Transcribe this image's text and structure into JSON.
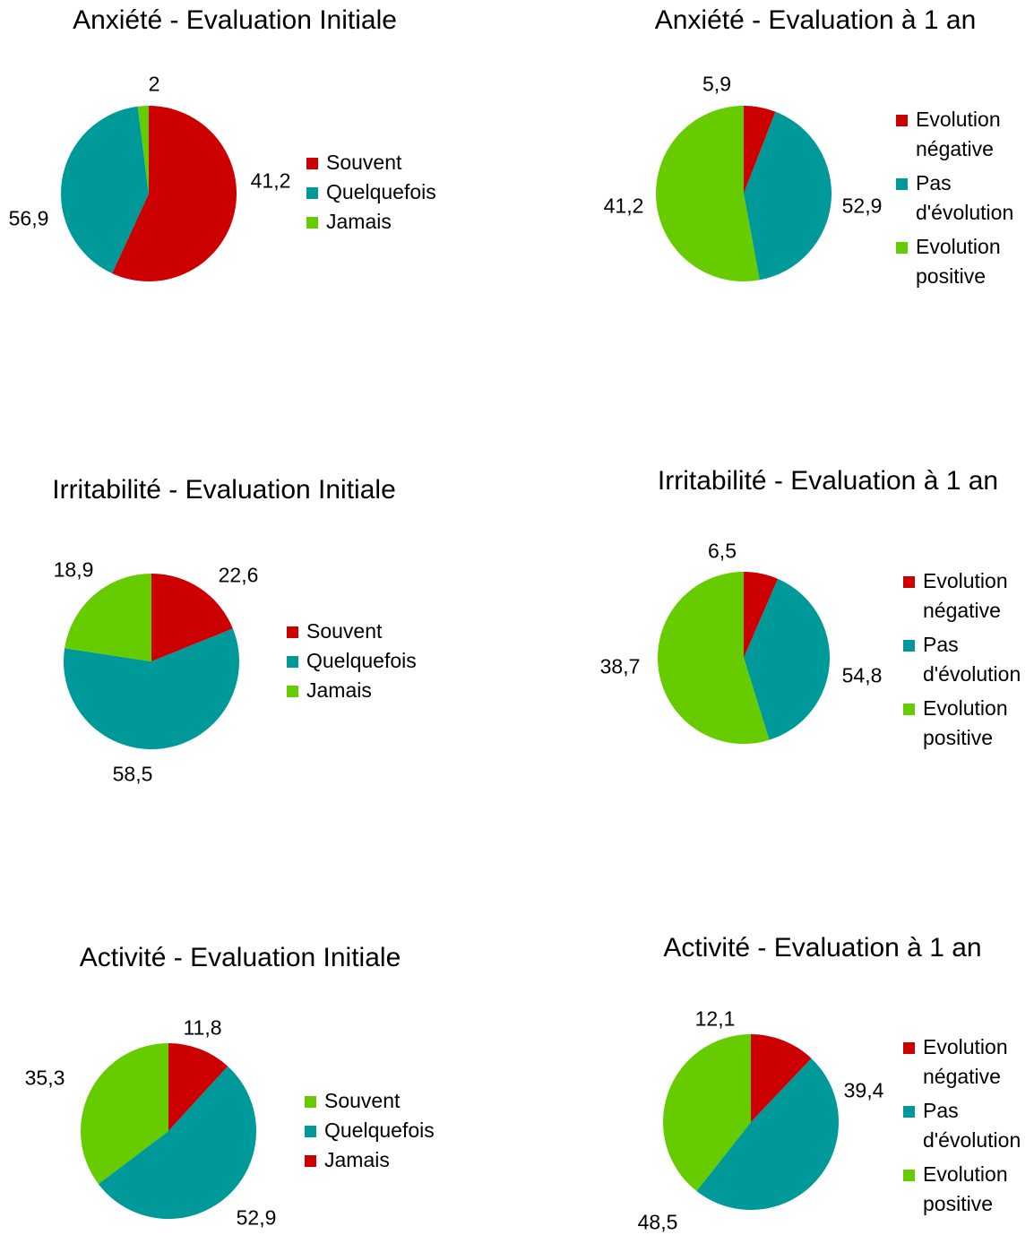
{
  "colors": {
    "red": "#cc0000",
    "teal": "#009999",
    "green": "#66cc00"
  },
  "chart_data": [
    {
      "type": "pie",
      "title": "Anxiété - Evaluation Initiale",
      "slices": [
        {
          "label": "Souvent",
          "value": 56.9,
          "display": "56,9",
          "color": "#cc0000"
        },
        {
          "label": "Quelquefois",
          "value": 41.2,
          "display": "41,2",
          "color": "#009999"
        },
        {
          "label": "Jamais",
          "value": 2,
          "display": "2",
          "color": "#66cc00"
        }
      ],
      "legend": [
        "Souvent",
        "Quelquefois",
        "Jamais"
      ],
      "legend_position": "right"
    },
    {
      "type": "pie",
      "title": "Anxiété - Evaluation à 1 an",
      "slices": [
        {
          "label": "Evolution négative",
          "value": 5.9,
          "display": "5,9",
          "color": "#cc0000"
        },
        {
          "label": "Pas d'évolution",
          "value": 41.2,
          "display": "41,2",
          "color": "#009999"
        },
        {
          "label": "Evolution positive",
          "value": 52.9,
          "display": "52,9",
          "color": "#66cc00"
        }
      ],
      "legend": [
        "Evolution négative",
        "Pas d'évolution",
        "Evolution positive"
      ],
      "legend_position": "right"
    },
    {
      "type": "pie",
      "title": "Irritabilité - Evaluation Initiale",
      "slices": [
        {
          "label": "Souvent",
          "value": 18.9,
          "display": "18,9",
          "color": "#cc0000"
        },
        {
          "label": "Quelquefois",
          "value": 58.5,
          "display": "58,5",
          "color": "#009999"
        },
        {
          "label": "Jamais",
          "value": 22.6,
          "display": "22,6",
          "color": "#66cc00"
        }
      ],
      "legend": [
        "Souvent",
        "Quelquefois",
        "Jamais"
      ],
      "legend_position": "right"
    },
    {
      "type": "pie",
      "title": "Irritabilité - Evaluation à 1 an",
      "slices": [
        {
          "label": "Evolution négative",
          "value": 6.5,
          "display": "6,5",
          "color": "#cc0000"
        },
        {
          "label": "Pas d'évolution",
          "value": 38.7,
          "display": "38,7",
          "color": "#009999"
        },
        {
          "label": "Evolution positive",
          "value": 54.8,
          "display": "54,8",
          "color": "#66cc00"
        }
      ],
      "legend": [
        "Evolution négative",
        "Pas d'évolution",
        "Evolution positive"
      ],
      "legend_position": "right"
    },
    {
      "type": "pie",
      "title": "Activité - Evaluation Initiale",
      "slices": [
        {
          "label": "Jamais",
          "value": 11.8,
          "display": "11,8",
          "color": "#cc0000"
        },
        {
          "label": "Quelquefois",
          "value": 52.9,
          "display": "52,9",
          "color": "#009999"
        },
        {
          "label": "Souvent",
          "value": 35.3,
          "display": "35,3",
          "color": "#66cc00"
        }
      ],
      "legend": [
        "Souvent",
        "Quelquefois",
        "Jamais"
      ],
      "legend_colors": [
        "#66cc00",
        "#009999",
        "#cc0000"
      ],
      "legend_position": "right"
    },
    {
      "type": "pie",
      "title": "Activité - Evaluation à 1 an",
      "slices": [
        {
          "label": "Evolution négative",
          "value": 12.1,
          "display": "12,1",
          "color": "#cc0000"
        },
        {
          "label": "Pas d'évolution",
          "value": 48.5,
          "display": "48,5",
          "color": "#009999"
        },
        {
          "label": "Evolution positive",
          "value": 39.4,
          "display": "39,4",
          "color": "#66cc00"
        }
      ],
      "legend": [
        "Evolution négative",
        "Pas d'évolution",
        "Evolution positive"
      ],
      "legend_position": "right"
    }
  ]
}
